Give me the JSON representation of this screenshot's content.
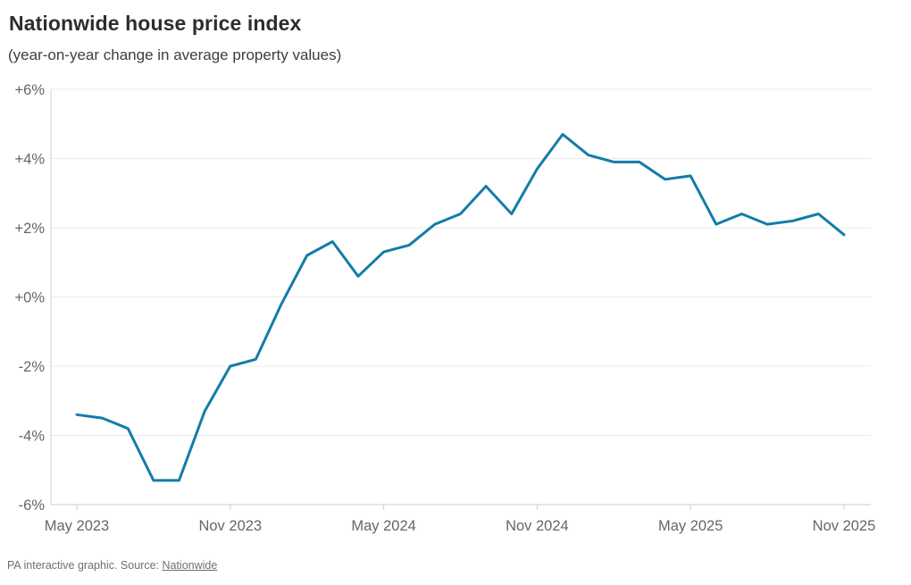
{
  "header": {
    "title": "Nationwide house price index",
    "subtitle": "(year-on-year change in average property values)"
  },
  "footer": {
    "credit": "PA interactive graphic. Source: ",
    "source_link": "Nationwide"
  },
  "colors": {
    "line": "#147ca8",
    "grid": "#ebebeb",
    "axis": "#cfcfcf",
    "tick_label": "#666666",
    "title": "#2d2d2d",
    "subtitle": "#3d3d3d",
    "footer": "#6f6f6f"
  },
  "chart_data": {
    "type": "line",
    "title": "Nationwide house price index",
    "subtitle": "(year-on-year change in average property values)",
    "unit": "percent year-on-year",
    "x": [
      "May 2023",
      "Jun 2023",
      "Jul 2023",
      "Aug 2023",
      "Sep 2023",
      "Oct 2023",
      "Nov 2023",
      "Dec 2023",
      "Jan 2024",
      "Feb 2024",
      "Mar 2024",
      "Apr 2024",
      "May 2024",
      "Jun 2024",
      "Jul 2024",
      "Aug 2024",
      "Sep 2024",
      "Oct 2024",
      "Nov 2024",
      "Dec 2024",
      "Jan 2025",
      "Feb 2025",
      "Mar 2025",
      "Apr 2025",
      "May 2025",
      "Jun 2025",
      "Jul 2025",
      "Aug 2025",
      "Sep 2025",
      "Oct 2025",
      "Nov 2025"
    ],
    "values": [
      -3.4,
      -3.5,
      -3.8,
      -5.3,
      -5.3,
      -3.3,
      -2.0,
      -1.8,
      -0.2,
      1.2,
      1.6,
      0.6,
      1.3,
      1.5,
      2.1,
      2.4,
      3.2,
      2.4,
      3.7,
      4.7,
      4.1,
      3.9,
      3.9,
      3.4,
      3.5,
      2.1,
      2.4,
      2.1,
      2.2,
      2.4,
      1.8
    ],
    "x_tick_labels": [
      "May 2023",
      "Nov 2023",
      "May 2024",
      "Nov 2024",
      "May 2025",
      "Nov 2025"
    ],
    "x_tick_indices": [
      0,
      6,
      12,
      18,
      24,
      30
    ],
    "y_ticks": [
      6,
      4,
      2,
      0,
      -2,
      -4,
      -6
    ],
    "y_tick_labels": [
      "+6%",
      "+4%",
      "+2%",
      "+0%",
      "-2%",
      "-4%",
      "-6%"
    ],
    "ylim": [
      -6,
      6
    ],
    "grid": "horizontal",
    "legend": "none",
    "line_color": "#147ca8"
  }
}
